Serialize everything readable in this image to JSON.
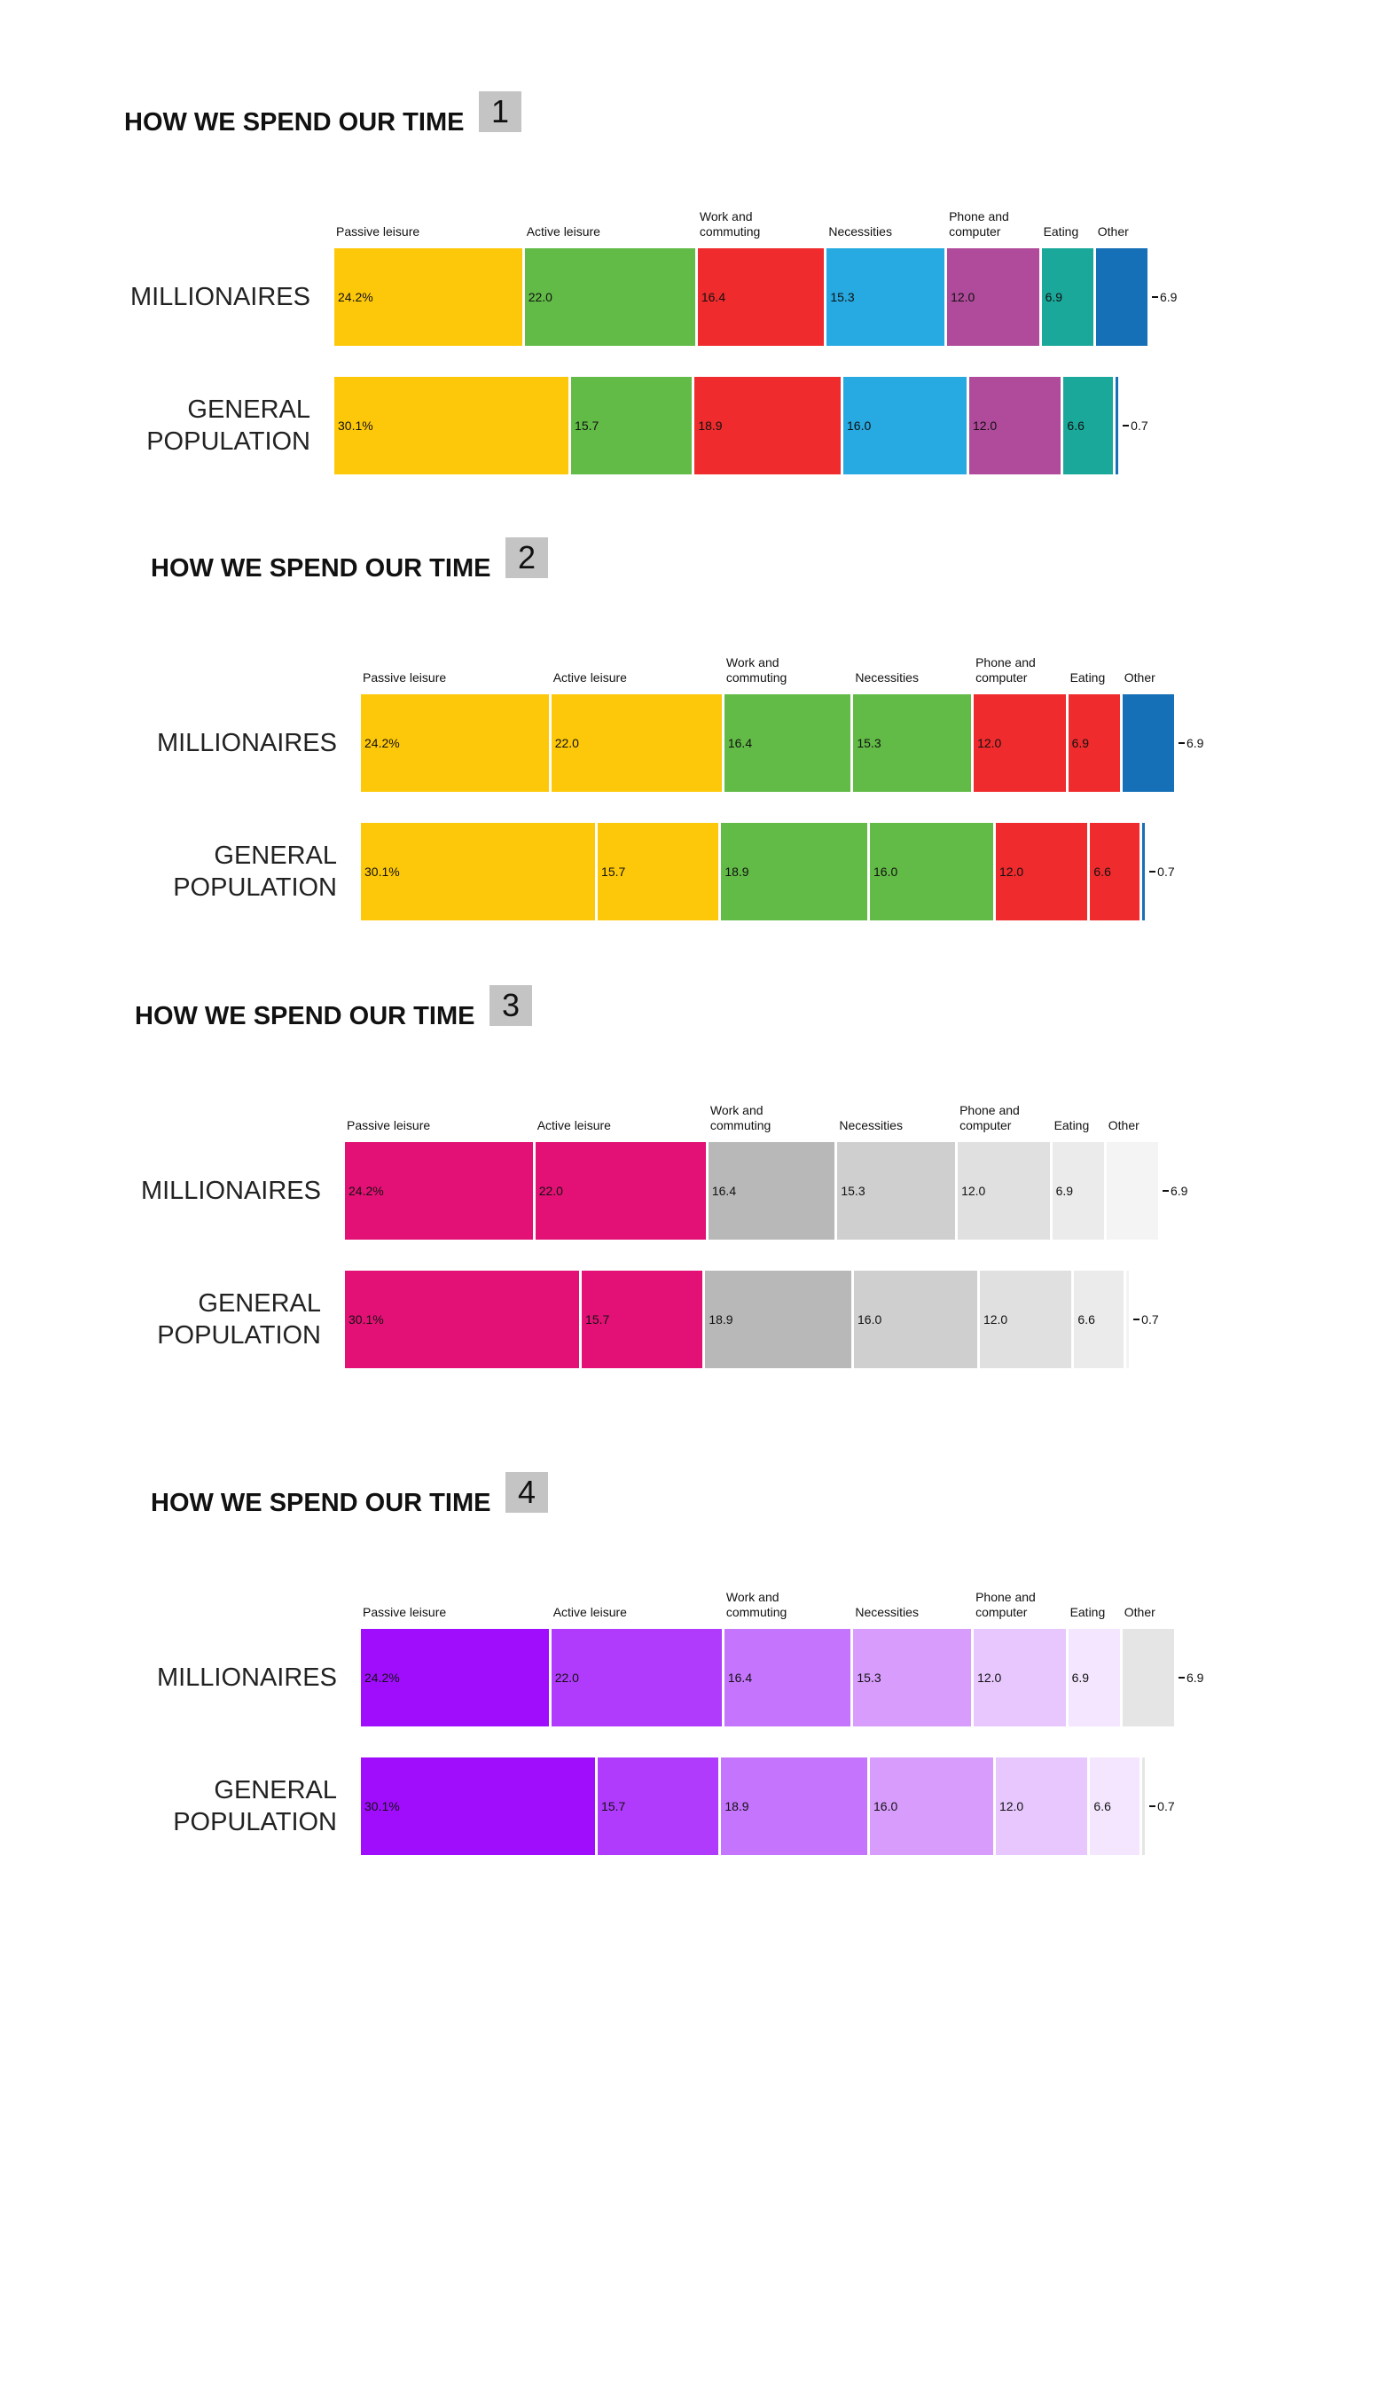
{
  "chart_data": [
    {
      "type": "bar",
      "stacked": true,
      "title": "HOW WE SPEND OUR TIME",
      "badge": "1",
      "categories": [
        "MILLIONAIRES",
        "GENERAL POPULATION"
      ],
      "series": [
        {
          "name": "Passive leisure",
          "color": "#fec80a",
          "values": [
            24.2,
            30.1
          ],
          "value_labels": [
            "24.2%",
            "30.1%"
          ]
        },
        {
          "name": "Active leisure",
          "color": "#62bb46",
          "values": [
            22.0,
            15.7
          ],
          "value_labels": [
            "22.0",
            "15.7"
          ]
        },
        {
          "name": "Work and commuting",
          "color": "#ef2b2d",
          "values": [
            16.4,
            18.9
          ],
          "value_labels": [
            "16.4",
            "18.9"
          ]
        },
        {
          "name": "Necessities",
          "color": "#27a9e1",
          "values": [
            15.3,
            16.0
          ],
          "value_labels": [
            "15.3",
            "16.0"
          ]
        },
        {
          "name": "Phone and computer",
          "color": "#b04a9b",
          "values": [
            12.0,
            12.0
          ],
          "value_labels": [
            "12.0",
            "12.0"
          ]
        },
        {
          "name": "Eating",
          "color": "#1aa89a",
          "values": [
            6.9,
            6.6
          ],
          "value_labels": [
            "6.9",
            "6.6"
          ]
        },
        {
          "name": "Other",
          "color": "#1570b8",
          "values": [
            6.9,
            0.7
          ],
          "value_labels": [
            "6.9",
            "0.7"
          ]
        }
      ]
    },
    {
      "type": "bar",
      "stacked": true,
      "title": "HOW WE SPEND OUR TIME",
      "badge": "2",
      "categories": [
        "MILLIONAIRES",
        "GENERAL POPULATION"
      ],
      "series": [
        {
          "name": "Passive leisure",
          "color": "#fec80a",
          "values": [
            24.2,
            30.1
          ],
          "value_labels": [
            "24.2%",
            "30.1%"
          ]
        },
        {
          "name": "Active leisure",
          "color": "#fec80a",
          "values": [
            22.0,
            15.7
          ],
          "value_labels": [
            "22.0",
            "15.7"
          ]
        },
        {
          "name": "Work and commuting",
          "color": "#62bb46",
          "values": [
            16.4,
            18.9
          ],
          "value_labels": [
            "16.4",
            "18.9"
          ]
        },
        {
          "name": "Necessities",
          "color": "#62bb46",
          "values": [
            15.3,
            16.0
          ],
          "value_labels": [
            "15.3",
            "16.0"
          ]
        },
        {
          "name": "Phone and computer",
          "color": "#ef2b2d",
          "values": [
            12.0,
            12.0
          ],
          "value_labels": [
            "12.0",
            "12.0"
          ]
        },
        {
          "name": "Eating",
          "color": "#ef2b2d",
          "values": [
            6.9,
            6.6
          ],
          "value_labels": [
            "6.9",
            "6.6"
          ]
        },
        {
          "name": "Other",
          "color": "#1570b8",
          "values": [
            6.9,
            0.7
          ],
          "value_labels": [
            "6.9",
            "0.7"
          ]
        }
      ]
    },
    {
      "type": "bar",
      "stacked": true,
      "title": "HOW WE SPEND OUR TIME",
      "badge": "3",
      "categories": [
        "MILLIONAIRES",
        "GENERAL POPULATION"
      ],
      "series": [
        {
          "name": "Passive leisure",
          "color": "#e31176",
          "values": [
            24.2,
            30.1
          ],
          "value_labels": [
            "24.2%",
            "30.1%"
          ]
        },
        {
          "name": "Active leisure",
          "color": "#e31176",
          "values": [
            22.0,
            15.7
          ],
          "value_labels": [
            "22.0",
            "15.7"
          ]
        },
        {
          "name": "Work and commuting",
          "color": "#b8b8b8",
          "values": [
            16.4,
            18.9
          ],
          "value_labels": [
            "16.4",
            "18.9"
          ]
        },
        {
          "name": "Necessities",
          "color": "#cfcfcf",
          "values": [
            15.3,
            16.0
          ],
          "value_labels": [
            "15.3",
            "16.0"
          ]
        },
        {
          "name": "Phone and computer",
          "color": "#e0e0e0",
          "values": [
            12.0,
            12.0
          ],
          "value_labels": [
            "12.0",
            "12.0"
          ]
        },
        {
          "name": "Eating",
          "color": "#ebebeb",
          "values": [
            6.9,
            6.6
          ],
          "value_labels": [
            "6.9",
            "6.6"
          ]
        },
        {
          "name": "Other",
          "color": "#f4f4f4",
          "values": [
            6.9,
            0.7
          ],
          "value_labels": [
            "6.9",
            "0.7"
          ]
        }
      ]
    },
    {
      "type": "bar",
      "stacked": true,
      "title": "HOW WE SPEND OUR TIME",
      "badge": "4",
      "categories": [
        "MILLIONAIRES",
        "GENERAL POPULATION"
      ],
      "series": [
        {
          "name": "Passive leisure",
          "color": "#a00dfc",
          "values": [
            24.2,
            30.1
          ],
          "value_labels": [
            "24.2%",
            "30.1%"
          ]
        },
        {
          "name": "Active leisure",
          "color": "#b13bfc",
          "values": [
            22.0,
            15.7
          ],
          "value_labels": [
            "22.0",
            "15.7"
          ]
        },
        {
          "name": "Work and commuting",
          "color": "#c574fd",
          "values": [
            16.4,
            18.9
          ],
          "value_labels": [
            "16.4",
            "18.9"
          ]
        },
        {
          "name": "Necessities",
          "color": "#d89cfd",
          "values": [
            15.3,
            16.0
          ],
          "value_labels": [
            "15.3",
            "16.0"
          ]
        },
        {
          "name": "Phone and computer",
          "color": "#e7c7fd",
          "values": [
            12.0,
            12.0
          ],
          "value_labels": [
            "12.0",
            "12.0"
          ]
        },
        {
          "name": "Eating",
          "color": "#f4e6fe",
          "values": [
            6.9,
            6.6
          ],
          "value_labels": [
            "6.9",
            "6.6"
          ]
        },
        {
          "name": "Other",
          "color": "#e5e5e5",
          "values": [
            6.9,
            0.7
          ],
          "value_labels": [
            "6.9",
            "0.7"
          ]
        }
      ]
    }
  ]
}
